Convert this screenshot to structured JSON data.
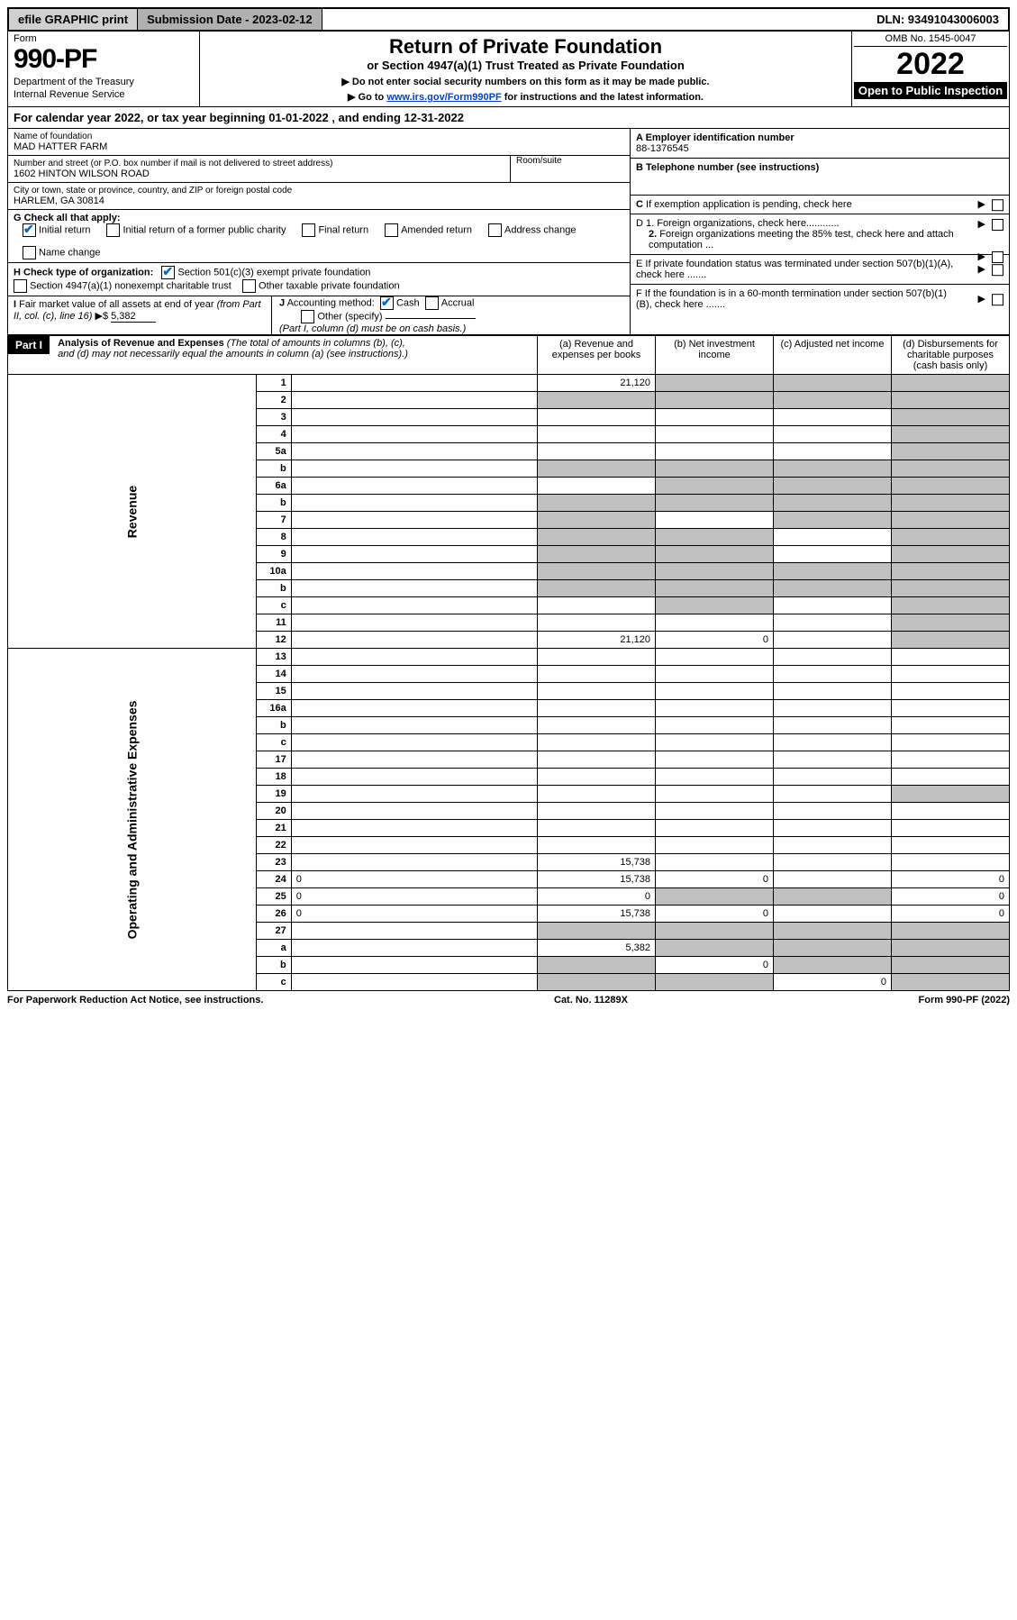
{
  "topbar": {
    "efile": "efile GRAPHIC print",
    "submission": "Submission Date - 2023-02-12",
    "dln": "DLN: 93491043006003"
  },
  "header": {
    "form_label": "Form",
    "form_number": "990-PF",
    "dept1": "Department of the Treasury",
    "dept2": "Internal Revenue Service",
    "title": "Return of Private Foundation",
    "subtitle": "or Section 4947(a)(1) Trust Treated as Private Foundation",
    "note1": "▶ Do not enter social security numbers on this form as it may be made public.",
    "note2_pre": "▶ Go to ",
    "note2_link": "www.irs.gov/Form990PF",
    "note2_post": " for instructions and the latest information.",
    "omb": "OMB No. 1545-0047",
    "year": "2022",
    "open_public": "Open to Public Inspection"
  },
  "cal_year": "For calendar year 2022, or tax year beginning 01-01-2022                         , and ending 12-31-2022",
  "foundation": {
    "name_label": "Name of foundation",
    "name": "MAD HATTER FARM",
    "street_label": "Number and street (or P.O. box number if mail is not delivered to street address)",
    "room_label": "Room/suite",
    "street": "1602 HINTON WILSON ROAD",
    "city_label": "City or town, state or province, country, and ZIP or foreign postal code",
    "city": "HARLEM, GA  30814",
    "ein_label": "A Employer identification number",
    "ein": "88-1376545",
    "phone_label": "B Telephone number (see instructions)",
    "c_label": "C If exemption application is pending, check here",
    "d1_label": "D 1. Foreign organizations, check here............",
    "d2_label": "2. Foreign organizations meeting the 85% test, check here and attach computation ...",
    "e_label": "E  If private foundation status was terminated under section 507(b)(1)(A), check here .......",
    "f_label": "F  If the foundation is in a 60-month termination under section 507(b)(1)(B), check here .......",
    "g_label": "G Check all that apply:",
    "g_opts": [
      "Initial return",
      "Initial return of a former public charity",
      "Final return",
      "Amended return",
      "Address change",
      "Name change"
    ],
    "h_label": "H Check type of organization:",
    "h_opts": [
      "Section 501(c)(3) exempt private foundation",
      "Section 4947(a)(1) nonexempt charitable trust",
      "Other taxable private foundation"
    ],
    "i_label": "I Fair market value of all assets at end of year (from Part II, col. (c), line 16)",
    "i_val": "5,382",
    "j_label": "J Accounting method:",
    "j_opts": [
      "Cash",
      "Accrual",
      "Other (specify)"
    ],
    "j_note": "(Part I, column (d) must be on cash basis.)"
  },
  "part1": {
    "label": "Part I",
    "title": "Analysis of Revenue and Expenses",
    "note": " (The total of amounts in columns (b), (c), and (d) may not necessarily equal the amounts in column (a) (see instructions).)",
    "col_a": "(a)   Revenue and expenses per books",
    "col_b": "(b)   Net investment income",
    "col_c": "(c)   Adjusted net income",
    "col_d": "(d)   Disbursements for charitable purposes (cash basis only)",
    "side_rev": "Revenue",
    "side_exp": "Operating and Administrative Expenses"
  },
  "rows": [
    {
      "n": "1",
      "d": "",
      "a": "21,120",
      "b": "",
      "c": "",
      "bg": [
        "",
        "g",
        "g",
        "g"
      ]
    },
    {
      "n": "2",
      "d": "",
      "a": "",
      "b": "",
      "c": "",
      "bg": [
        "g",
        "g",
        "g",
        "g"
      ]
    },
    {
      "n": "3",
      "d": "",
      "a": "",
      "b": "",
      "c": "",
      "bg": [
        "",
        "",
        "",
        "g"
      ]
    },
    {
      "n": "4",
      "d": "",
      "a": "",
      "b": "",
      "c": "",
      "bg": [
        "",
        "",
        "",
        "g"
      ]
    },
    {
      "n": "5a",
      "d": "",
      "a": "",
      "b": "",
      "c": "",
      "bg": [
        "",
        "",
        "",
        "g"
      ]
    },
    {
      "n": "b",
      "d": "",
      "a": "",
      "b": "",
      "c": "",
      "bg": [
        "g",
        "g",
        "g",
        "g"
      ]
    },
    {
      "n": "6a",
      "d": "",
      "a": "",
      "b": "",
      "c": "",
      "bg": [
        "",
        "g",
        "g",
        "g"
      ]
    },
    {
      "n": "b",
      "d": "",
      "a": "",
      "b": "",
      "c": "",
      "bg": [
        "g",
        "g",
        "g",
        "g"
      ]
    },
    {
      "n": "7",
      "d": "",
      "a": "",
      "b": "",
      "c": "",
      "bg": [
        "g",
        "",
        "g",
        "g"
      ]
    },
    {
      "n": "8",
      "d": "",
      "a": "",
      "b": "",
      "c": "",
      "bg": [
        "g",
        "g",
        "",
        "g"
      ]
    },
    {
      "n": "9",
      "d": "",
      "a": "",
      "b": "",
      "c": "",
      "bg": [
        "g",
        "g",
        "",
        "g"
      ]
    },
    {
      "n": "10a",
      "d": "",
      "a": "",
      "b": "",
      "c": "",
      "bg": [
        "g",
        "g",
        "g",
        "g"
      ]
    },
    {
      "n": "b",
      "d": "",
      "a": "",
      "b": "",
      "c": "",
      "bg": [
        "g",
        "g",
        "g",
        "g"
      ]
    },
    {
      "n": "c",
      "d": "",
      "a": "",
      "b": "",
      "c": "",
      "bg": [
        "",
        "g",
        "",
        "g"
      ]
    },
    {
      "n": "11",
      "d": "",
      "a": "",
      "b": "",
      "c": "",
      "bg": [
        "",
        "",
        "",
        "g"
      ]
    },
    {
      "n": "12",
      "d": "",
      "a": "21,120",
      "b": "0",
      "c": "",
      "bg": [
        "",
        "",
        "",
        "g"
      ]
    },
    {
      "n": "13",
      "d": "",
      "a": "",
      "b": "",
      "c": "",
      "bg": [
        "",
        "",
        "",
        ""
      ]
    },
    {
      "n": "14",
      "d": "",
      "a": "",
      "b": "",
      "c": "",
      "bg": [
        "",
        "",
        "",
        ""
      ]
    },
    {
      "n": "15",
      "d": "",
      "a": "",
      "b": "",
      "c": "",
      "bg": [
        "",
        "",
        "",
        ""
      ]
    },
    {
      "n": "16a",
      "d": "",
      "a": "",
      "b": "",
      "c": "",
      "bg": [
        "",
        "",
        "",
        ""
      ]
    },
    {
      "n": "b",
      "d": "",
      "a": "",
      "b": "",
      "c": "",
      "bg": [
        "",
        "",
        "",
        ""
      ]
    },
    {
      "n": "c",
      "d": "",
      "a": "",
      "b": "",
      "c": "",
      "bg": [
        "",
        "",
        "",
        ""
      ]
    },
    {
      "n": "17",
      "d": "",
      "a": "",
      "b": "",
      "c": "",
      "bg": [
        "",
        "",
        "",
        ""
      ]
    },
    {
      "n": "18",
      "d": "",
      "a": "",
      "b": "",
      "c": "",
      "bg": [
        "",
        "",
        "",
        ""
      ]
    },
    {
      "n": "19",
      "d": "",
      "a": "",
      "b": "",
      "c": "",
      "bg": [
        "",
        "",
        "",
        "g"
      ]
    },
    {
      "n": "20",
      "d": "",
      "a": "",
      "b": "",
      "c": "",
      "bg": [
        "",
        "",
        "",
        ""
      ]
    },
    {
      "n": "21",
      "d": "",
      "a": "",
      "b": "",
      "c": "",
      "bg": [
        "",
        "",
        "",
        ""
      ]
    },
    {
      "n": "22",
      "d": "",
      "a": "",
      "b": "",
      "c": "",
      "bg": [
        "",
        "",
        "",
        ""
      ]
    },
    {
      "n": "23",
      "d": "",
      "a": "15,738",
      "b": "",
      "c": "",
      "bg": [
        "",
        "",
        "",
        ""
      ]
    },
    {
      "n": "24",
      "d": "0",
      "a": "15,738",
      "b": "0",
      "c": "",
      "bg": [
        "",
        "",
        "",
        ""
      ]
    },
    {
      "n": "25",
      "d": "0",
      "a": "0",
      "b": "",
      "c": "",
      "bg": [
        "",
        "g",
        "g",
        ""
      ]
    },
    {
      "n": "26",
      "d": "0",
      "a": "15,738",
      "b": "0",
      "c": "",
      "bg": [
        "",
        "",
        "",
        ""
      ]
    },
    {
      "n": "27",
      "d": "",
      "a": "",
      "b": "",
      "c": "",
      "bg": [
        "g",
        "g",
        "g",
        "g"
      ]
    },
    {
      "n": "a",
      "d": "",
      "a": "5,382",
      "b": "",
      "c": "",
      "bg": [
        "",
        "g",
        "g",
        "g"
      ]
    },
    {
      "n": "b",
      "d": "",
      "a": "",
      "b": "0",
      "c": "",
      "bg": [
        "g",
        "",
        "g",
        "g"
      ]
    },
    {
      "n": "c",
      "d": "",
      "a": "",
      "b": "",
      "c": "0",
      "bg": [
        "g",
        "g",
        "",
        "g"
      ]
    }
  ],
  "footer": {
    "left": "For Paperwork Reduction Act Notice, see instructions.",
    "center": "Cat. No. 11289X",
    "right": "Form 990-PF (2022)"
  }
}
